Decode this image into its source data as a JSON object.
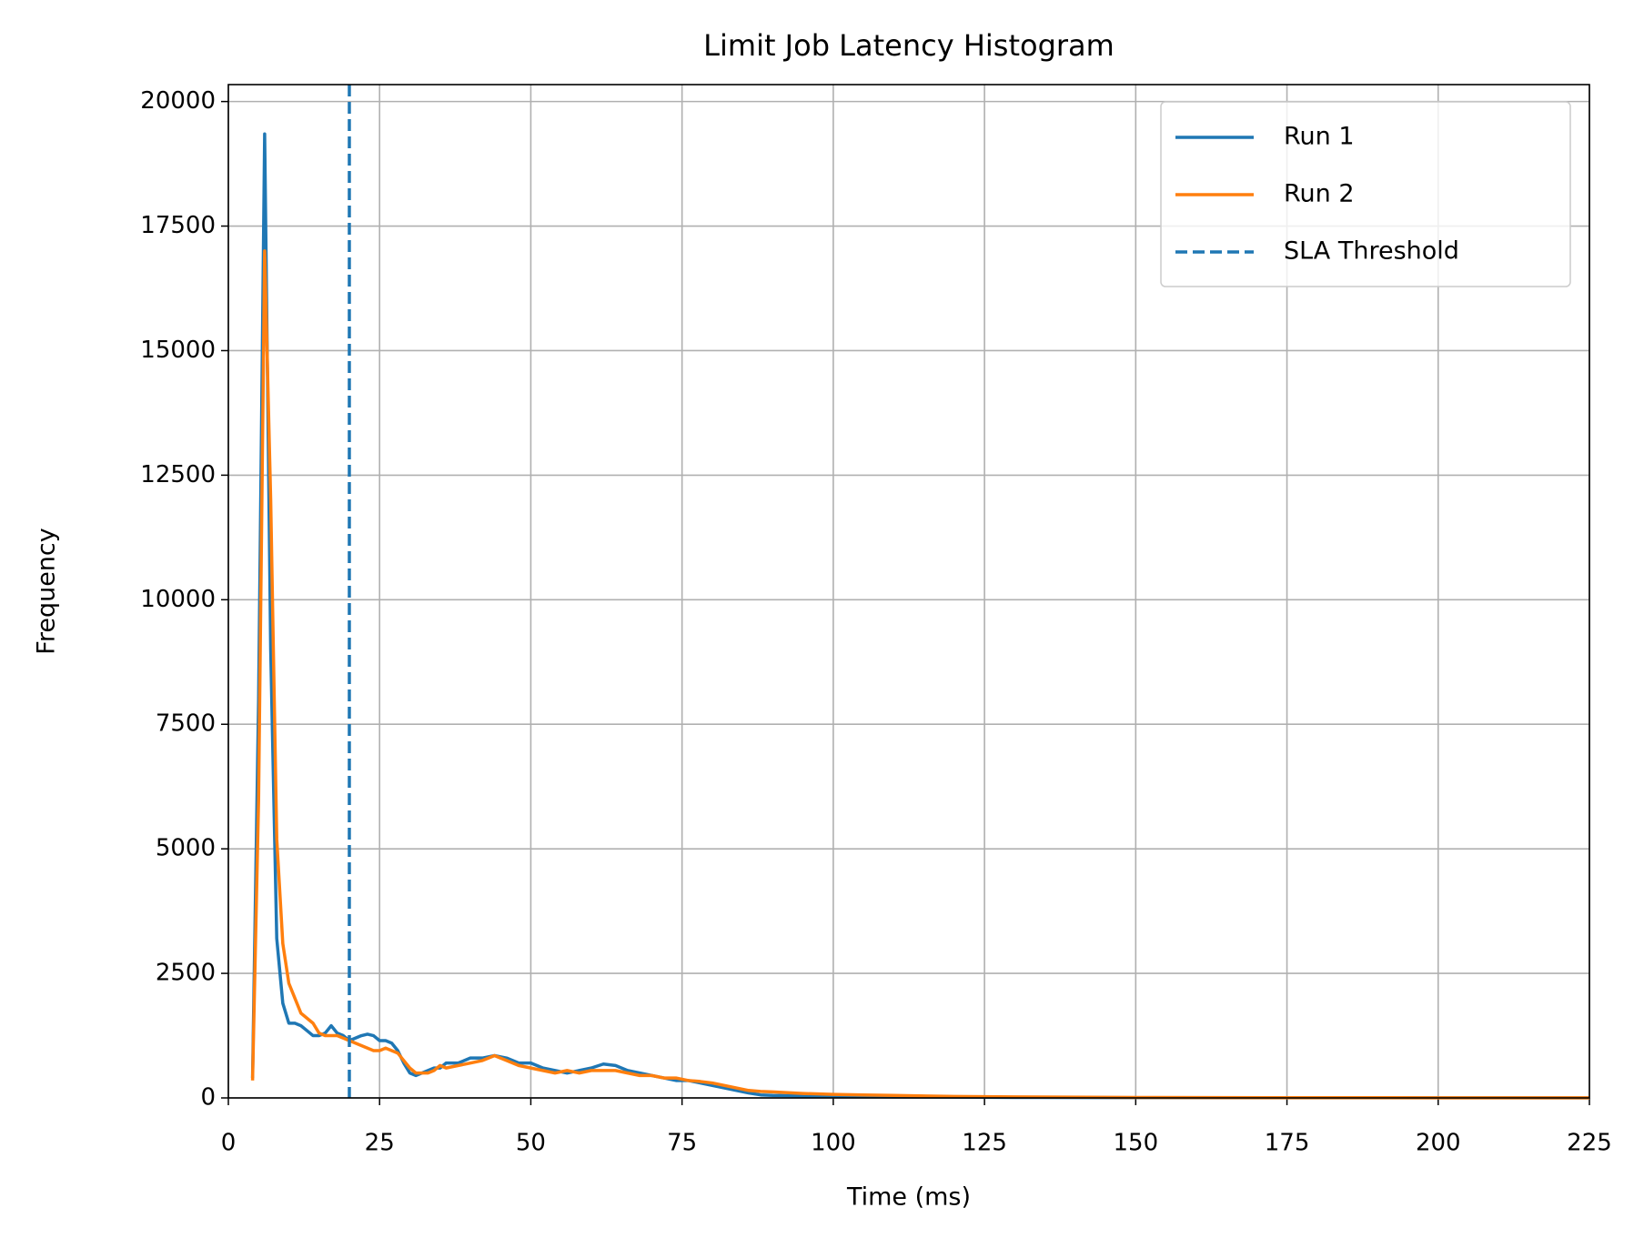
{
  "chart_data": {
    "type": "line",
    "title": "Limit Job Latency Histogram",
    "x_label": "Time (ms)",
    "y_label": "Frequency",
    "x": [
      4,
      5,
      6,
      7,
      8,
      9,
      10,
      11,
      12,
      13,
      14,
      15,
      16,
      17,
      18,
      19,
      20,
      21,
      22,
      23,
      24,
      25,
      26,
      27,
      28,
      29,
      30,
      31,
      32,
      33,
      34,
      35,
      36,
      38,
      40,
      42,
      44,
      46,
      48,
      50,
      52,
      54,
      56,
      58,
      60,
      62,
      64,
      66,
      68,
      70,
      72,
      74,
      76,
      78,
      80,
      82,
      84,
      86,
      88,
      90,
      95,
      100,
      105,
      110,
      120,
      130,
      150,
      175,
      200,
      225
    ],
    "series": [
      {
        "name": "Run 1",
        "color": "#1f77b4",
        "values": [
          400,
          8000,
          19350,
          9000,
          3200,
          1900,
          1500,
          1500,
          1450,
          1350,
          1250,
          1250,
          1300,
          1450,
          1300,
          1250,
          1150,
          1200,
          1250,
          1280,
          1250,
          1150,
          1150,
          1100,
          950,
          700,
          500,
          450,
          500,
          550,
          600,
          600,
          700,
          700,
          800,
          800,
          850,
          800,
          700,
          700,
          600,
          550,
          500,
          550,
          600,
          680,
          650,
          550,
          500,
          450,
          400,
          350,
          350,
          300,
          250,
          200,
          150,
          100,
          60,
          50,
          40,
          30,
          25,
          20,
          15,
          10,
          5,
          3,
          2,
          1
        ]
      },
      {
        "name": "Run 2",
        "color": "#ff7f0e",
        "values": [
          350,
          6000,
          17000,
          12000,
          5200,
          3100,
          2300,
          2000,
          1700,
          1600,
          1500,
          1300,
          1250,
          1250,
          1250,
          1200,
          1150,
          1100,
          1050,
          1000,
          950,
          950,
          1000,
          950,
          900,
          750,
          600,
          500,
          500,
          500,
          550,
          650,
          600,
          650,
          700,
          750,
          850,
          750,
          650,
          600,
          550,
          500,
          550,
          500,
          550,
          550,
          550,
          500,
          450,
          450,
          400,
          400,
          350,
          330,
          300,
          250,
          200,
          150,
          130,
          120,
          90,
          70,
          60,
          50,
          30,
          20,
          10,
          5,
          3,
          2
        ]
      }
    ],
    "threshold": {
      "name": "SLA Threshold",
      "value": 20,
      "color": "#1f77b4",
      "style": "dashed"
    },
    "xlim": [
      0,
      225
    ],
    "xticks": [
      0,
      25,
      50,
      75,
      100,
      125,
      150,
      175,
      200,
      225
    ],
    "ylim": [
      0,
      20340
    ],
    "yticks": [
      0,
      2500,
      5000,
      7500,
      10000,
      12500,
      15000,
      17500,
      20000
    ],
    "grid": true,
    "legend": "upper right"
  }
}
